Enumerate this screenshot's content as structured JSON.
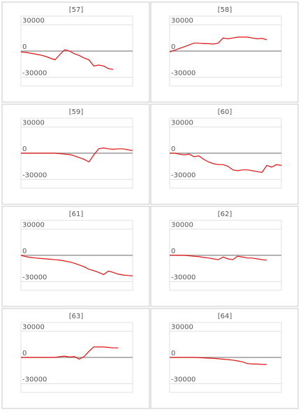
{
  "chart_data": [
    {
      "type": "line",
      "title": "[57]",
      "categories": [
        null,
        null,
        null,
        null,
        null,
        null,
        null,
        null,
        null,
        null,
        null,
        null,
        null,
        null,
        null,
        null,
        null,
        null,
        null,
        null,
        null,
        null,
        null,
        null
      ],
      "values": [
        -1000,
        -1500,
        -2500,
        -3500,
        -4500,
        -6000,
        -8000,
        -10000,
        -4000,
        1500,
        0,
        -3000,
        -5000,
        -8000,
        -10000,
        -17000,
        -16000,
        -17000,
        -20000,
        -21000,
        null,
        null,
        null,
        null
      ],
      "color": "#e01010",
      "ylim": [
        -40000,
        40000
      ],
      "yticks": [
        -30000,
        0,
        30000
      ]
    },
    {
      "type": "line",
      "title": "[58]",
      "categories": [
        null,
        null,
        null,
        null,
        null,
        null,
        null,
        null,
        null,
        null,
        null,
        null,
        null,
        null,
        null,
        null,
        null,
        null,
        null,
        null,
        null,
        null,
        null,
        null
      ],
      "values": [
        -1000,
        1000,
        3000,
        5000,
        7000,
        9000,
        9000,
        8500,
        8500,
        8000,
        9000,
        15000,
        14000,
        15000,
        16000,
        16000,
        16000,
        15000,
        14000,
        14500,
        13000,
        null,
        null,
        null
      ],
      "color": "#e01010",
      "ylim": [
        -40000,
        40000
      ],
      "yticks": [
        -30000,
        0,
        30000
      ]
    },
    {
      "type": "line",
      "title": "[59]",
      "categories": [
        null,
        null,
        null,
        null,
        null,
        null,
        null,
        null,
        null,
        null,
        null,
        null,
        null,
        null,
        null,
        null,
        null,
        null,
        null,
        null,
        null,
        null,
        null,
        null
      ],
      "values": [
        0,
        0,
        0,
        0,
        0,
        0,
        0,
        0,
        -500,
        -1000,
        -1500,
        -3000,
        -5000,
        -7000,
        -10000,
        -2000,
        5000,
        6000,
        5000,
        4500,
        5000,
        5000,
        4000,
        3000
      ],
      "color": "#e01010",
      "ylim": [
        -40000,
        40000
      ],
      "yticks": [
        -30000,
        0,
        30000
      ]
    },
    {
      "type": "line",
      "title": "[60]",
      "categories": [
        null,
        null,
        null,
        null,
        null,
        null,
        null,
        null,
        null,
        null,
        null,
        null,
        null,
        null,
        null,
        null,
        null,
        null,
        null,
        null,
        null,
        null,
        null,
        null
      ],
      "values": [
        0,
        0,
        -1000,
        -2000,
        -1000,
        -4000,
        -3000,
        -7000,
        -10000,
        -12000,
        -13000,
        -13000,
        -15000,
        -19000,
        -20000,
        -19000,
        -19000,
        -20000,
        -21000,
        -22000,
        -14000,
        -16000,
        -13000,
        -14000
      ],
      "color": "#e01010",
      "ylim": [
        -40000,
        40000
      ],
      "yticks": [
        -30000,
        0,
        30000
      ]
    },
    {
      "type": "line",
      "title": "[61]",
      "categories": [
        null,
        null,
        null,
        null,
        null,
        null,
        null,
        null,
        null,
        null,
        null,
        null,
        null,
        null,
        null,
        null,
        null,
        null,
        null,
        null,
        null,
        null,
        null,
        null
      ],
      "values": [
        0,
        -1500,
        -2500,
        -3000,
        -3500,
        -4000,
        -4500,
        -5000,
        -5500,
        -6500,
        -7500,
        -9000,
        -11000,
        -13000,
        -16000,
        -17500,
        -19500,
        -22000,
        -18000,
        -19500,
        -21500,
        -22500,
        -23000,
        -23500
      ],
      "color": "#e01010",
      "ylim": [
        -40000,
        40000
      ],
      "yticks": [
        -30000,
        0,
        30000
      ]
    },
    {
      "type": "line",
      "title": "[62]",
      "categories": [
        null,
        null,
        null,
        null,
        null,
        null,
        null,
        null,
        null,
        null,
        null,
        null,
        null,
        null,
        null,
        null,
        null,
        null,
        null,
        null,
        null,
        null,
        null,
        null
      ],
      "values": [
        0,
        0,
        0,
        0,
        -500,
        -1000,
        -1500,
        -2500,
        -3000,
        -4000,
        -5000,
        -2000,
        -4000,
        -5000,
        -1000,
        -2000,
        -3000,
        -3000,
        -4000,
        -5000,
        -5500,
        null,
        null,
        null
      ],
      "color": "#e01010",
      "ylim": [
        -40000,
        40000
      ],
      "yticks": [
        -30000,
        0,
        30000
      ]
    },
    {
      "type": "line",
      "title": "[63]",
      "categories": [
        null,
        null,
        null,
        null,
        null,
        null,
        null,
        null,
        null,
        null,
        null,
        null,
        null,
        null,
        null,
        null,
        null,
        null,
        null,
        null,
        null,
        null,
        null,
        null
      ],
      "values": [
        0,
        0,
        0,
        0,
        0,
        0,
        0,
        0,
        1000,
        1500,
        500,
        1000,
        -2000,
        1000,
        7000,
        12000,
        12000,
        12000,
        11500,
        11000,
        11000,
        null,
        null,
        null
      ],
      "color": "#e01010",
      "ylim": [
        -40000,
        40000
      ],
      "yticks": [
        -30000,
        0,
        30000
      ]
    },
    {
      "type": "line",
      "title": "[64]",
      "categories": [
        null,
        null,
        null,
        null,
        null,
        null,
        null,
        null,
        null,
        null,
        null,
        null,
        null,
        null,
        null,
        null,
        null,
        null,
        null,
        null,
        null,
        null,
        null,
        null
      ],
      "values": [
        0,
        0,
        0,
        0,
        0,
        0,
        -200,
        -500,
        -800,
        -1000,
        -1500,
        -2000,
        -2500,
        -3000,
        -4000,
        -5000,
        -7000,
        -7500,
        -7500,
        -8000,
        -8000,
        null,
        null,
        null
      ],
      "color": "#e01010",
      "ylim": [
        -40000,
        40000
      ],
      "yticks": [
        -30000,
        0,
        30000
      ]
    }
  ]
}
